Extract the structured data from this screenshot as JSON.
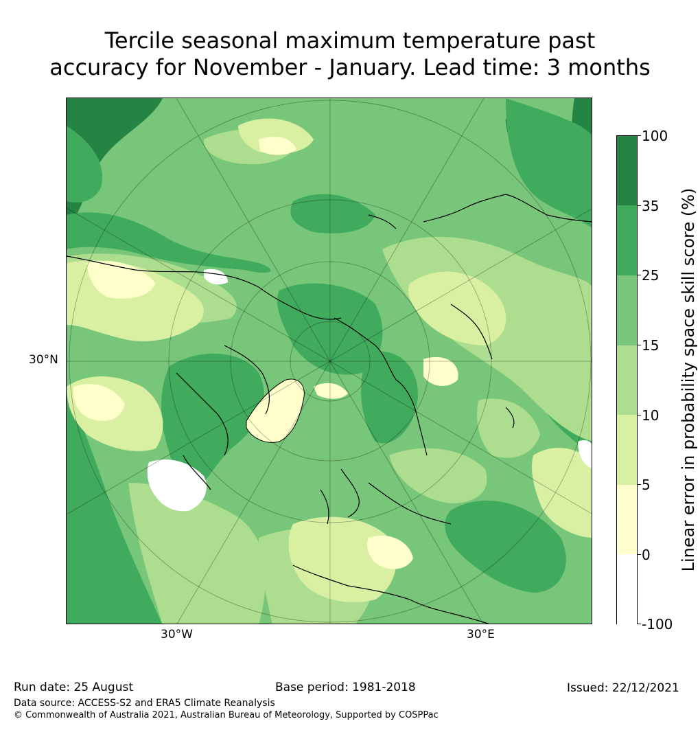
{
  "title_line1": "Tercile seasonal maximum temperature past",
  "title_line2": "accuracy for November - January. Lead time: 3 months",
  "map": {
    "lat_label": "30°N",
    "lon_labels": [
      "30°W",
      "30°E"
    ],
    "colors": {
      "dark": "#238443",
      "green": "#41ab5d",
      "mid": "#78c679",
      "light": "#addd8e",
      "pale": "#d9f0a3",
      "cream": "#ffffcc",
      "white": "#ffffff",
      "coast": "#000000"
    }
  },
  "colorbar": {
    "title": "Linear error in probability space skill score (%)",
    "ticks": [
      "100",
      "35",
      "25",
      "15",
      "10",
      "5",
      "0",
      "-100"
    ],
    "colors": [
      "#238443",
      "#41ab5d",
      "#78c679",
      "#addd8e",
      "#d9f0a3",
      "#ffffcc",
      "#ffffff"
    ]
  },
  "footer": {
    "run_date": "Run date: 25 August",
    "base_period": "Base period: 1981-2018",
    "issued": "Issued: 22/12/2021",
    "data_source": "Data source: ACCESS-S2 and ERA5 Climate Reanalysis",
    "copyright": "© Commonwealth of Australia 2021, Australian Bureau of Meteorology, Supported by COSPPac"
  }
}
